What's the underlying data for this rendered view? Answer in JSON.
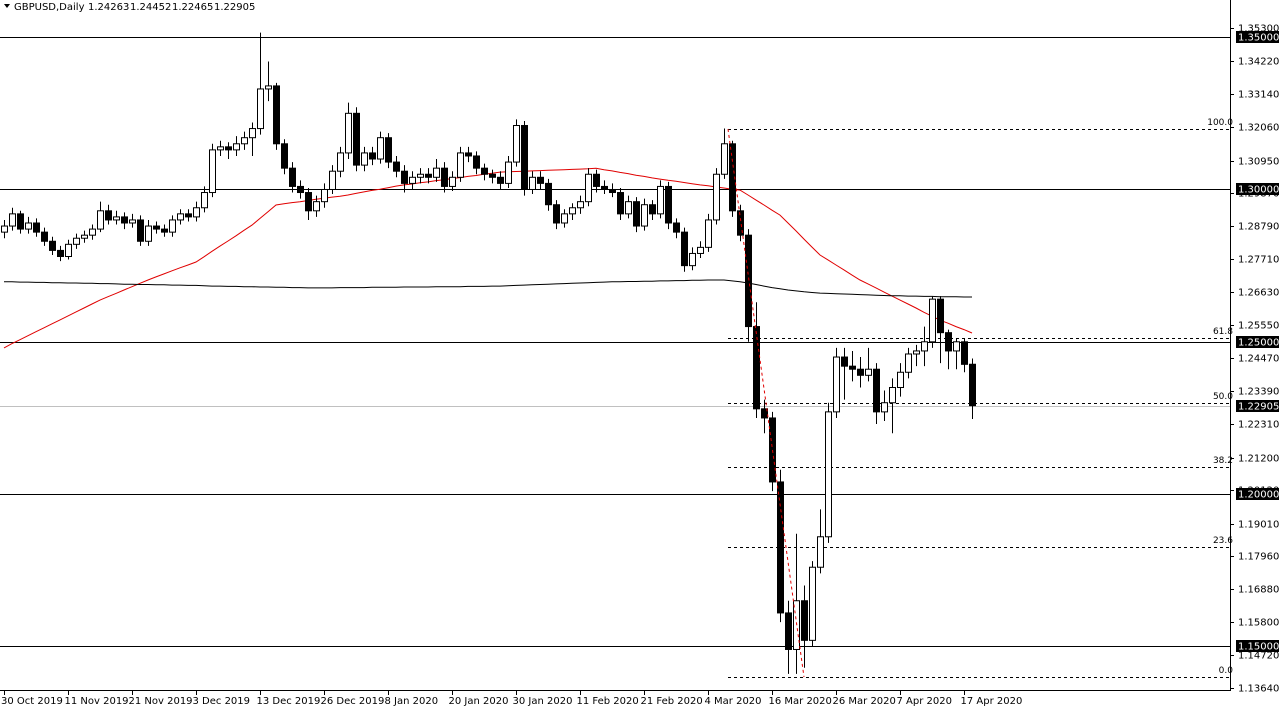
{
  "chart_data": {
    "type": "candlestick",
    "title": "GBPUSD,Daily",
    "categories": [
      "30 Oct 2019",
      null,
      null,
      null,
      null,
      null,
      null,
      null,
      "11 Nov 2019",
      null,
      null,
      null,
      null,
      null,
      null,
      null,
      "21 Nov 2019",
      null,
      null,
      null,
      null,
      null,
      null,
      null,
      "3 Dec 2019",
      null,
      null,
      null,
      null,
      null,
      null,
      null,
      "13 Dec 2019",
      null,
      null,
      null,
      null,
      null,
      null,
      null,
      "26 Dec 2019",
      null,
      null,
      null,
      null,
      null,
      null,
      null,
      "8 Jan 2020",
      null,
      null,
      null,
      null,
      null,
      null,
      null,
      "20 Jan 2020",
      null,
      null,
      null,
      null,
      null,
      null,
      null,
      "30 Jan 2020",
      null,
      null,
      null,
      null,
      null,
      null,
      null,
      "11 Feb 2020",
      null,
      null,
      null,
      null,
      null,
      null,
      null,
      "21 Feb 2020",
      null,
      null,
      null,
      null,
      null,
      null,
      null,
      "4 Mar 2020",
      null,
      null,
      null,
      null,
      null,
      null,
      null,
      "16 Mar 2020",
      null,
      null,
      null,
      null,
      null,
      null,
      null,
      "26 Mar 2020",
      null,
      null,
      null,
      null,
      null,
      null,
      null,
      "7 Apr 2020",
      null,
      null,
      null,
      null,
      null,
      null,
      null,
      "17 Apr 2020",
      null
    ],
    "ohlc": [
      [
        1.286,
        1.29,
        1.284,
        1.288
      ],
      [
        1.288,
        1.294,
        1.2865,
        1.292
      ],
      [
        1.292,
        1.293,
        1.2855,
        1.287
      ],
      [
        1.287,
        1.291,
        1.2855,
        1.289
      ],
      [
        1.289,
        1.2905,
        1.2845,
        1.286
      ],
      [
        1.286,
        1.2875,
        1.2815,
        1.283
      ],
      [
        1.283,
        1.2845,
        1.2785,
        1.28
      ],
      [
        1.28,
        1.2815,
        1.2765,
        1.278
      ],
      [
        1.278,
        1.2835,
        1.277,
        1.282
      ],
      [
        1.282,
        1.2855,
        1.2805,
        1.284
      ],
      [
        1.284,
        1.2865,
        1.2825,
        1.285
      ],
      [
        1.285,
        1.2885,
        1.2835,
        1.287
      ],
      [
        1.287,
        1.296,
        1.286,
        1.293
      ],
      [
        1.293,
        1.295,
        1.2885,
        1.29
      ],
      [
        1.29,
        1.293,
        1.2885,
        1.291
      ],
      [
        1.291,
        1.2925,
        1.287,
        1.289
      ],
      [
        1.289,
        1.292,
        1.2875,
        1.29
      ],
      [
        1.29,
        1.2915,
        1.2815,
        1.283
      ],
      [
        1.283,
        1.29,
        1.2815,
        1.288
      ],
      [
        1.288,
        1.2895,
        1.2855,
        1.287
      ],
      [
        1.287,
        1.2885,
        1.2845,
        1.286
      ],
      [
        1.286,
        1.2915,
        1.2845,
        1.29
      ],
      [
        1.29,
        1.2935,
        1.2885,
        1.292
      ],
      [
        1.292,
        1.2935,
        1.2895,
        1.291
      ],
      [
        1.291,
        1.296,
        1.2895,
        1.294
      ],
      [
        1.294,
        1.301,
        1.2925,
        1.299
      ],
      [
        1.299,
        1.315,
        1.2975,
        1.313
      ],
      [
        1.313,
        1.316,
        1.311,
        1.314
      ],
      [
        1.314,
        1.3155,
        1.31,
        1.313
      ],
      [
        1.313,
        1.3175,
        1.311,
        1.315
      ],
      [
        1.315,
        1.319,
        1.313,
        1.317
      ],
      [
        1.317,
        1.322,
        1.311,
        1.32
      ],
      [
        1.32,
        1.3515,
        1.318,
        1.333
      ],
      [
        1.333,
        1.342,
        1.329,
        1.334
      ],
      [
        1.334,
        1.335,
        1.313,
        1.315
      ],
      [
        1.315,
        1.3165,
        1.305,
        1.307
      ],
      [
        1.307,
        1.309,
        1.299,
        1.301
      ],
      [
        1.301,
        1.303,
        1.297,
        1.299
      ],
      [
        1.299,
        1.3005,
        1.29,
        1.293
      ],
      [
        1.293,
        1.298,
        1.291,
        1.296
      ],
      [
        1.296,
        1.302,
        1.294,
        1.3
      ],
      [
        1.3,
        1.308,
        1.2985,
        1.306
      ],
      [
        1.306,
        1.314,
        1.304,
        1.312
      ],
      [
        1.312,
        1.3285,
        1.31,
        1.325
      ],
      [
        1.325,
        1.327,
        1.306,
        1.308
      ],
      [
        1.308,
        1.314,
        1.306,
        1.312
      ],
      [
        1.312,
        1.314,
        1.308,
        1.31
      ],
      [
        1.31,
        1.319,
        1.3085,
        1.317
      ],
      [
        1.317,
        1.3185,
        1.307,
        1.309
      ],
      [
        1.309,
        1.311,
        1.304,
        1.306
      ],
      [
        1.306,
        1.308,
        1.299,
        1.302
      ],
      [
        1.302,
        1.306,
        1.3,
        1.304
      ],
      [
        1.304,
        1.307,
        1.302,
        1.305
      ],
      [
        1.305,
        1.307,
        1.302,
        1.304
      ],
      [
        1.304,
        1.31,
        1.3025,
        1.307
      ],
      [
        1.307,
        1.309,
        1.299,
        1.301
      ],
      [
        1.301,
        1.306,
        1.2995,
        1.304
      ],
      [
        1.304,
        1.314,
        1.3025,
        1.312
      ],
      [
        1.312,
        1.314,
        1.309,
        1.311
      ],
      [
        1.311,
        1.3125,
        1.305,
        1.307
      ],
      [
        1.307,
        1.3085,
        1.303,
        1.305
      ],
      [
        1.305,
        1.3065,
        1.302,
        1.304
      ],
      [
        1.304,
        1.306,
        1.3,
        1.302
      ],
      [
        1.302,
        1.311,
        1.3005,
        1.309
      ],
      [
        1.309,
        1.323,
        1.3075,
        1.321
      ],
      [
        1.321,
        1.3225,
        1.298,
        1.3
      ],
      [
        1.3,
        1.306,
        1.2985,
        1.304
      ],
      [
        1.304,
        1.306,
        1.3,
        1.302
      ],
      [
        1.302,
        1.3035,
        1.293,
        1.295
      ],
      [
        1.295,
        1.2965,
        1.287,
        1.289
      ],
      [
        1.289,
        1.2935,
        1.2875,
        1.292
      ],
      [
        1.292,
        1.2955,
        1.29,
        1.294
      ],
      [
        1.294,
        1.298,
        1.292,
        1.296
      ],
      [
        1.296,
        1.307,
        1.2945,
        1.305
      ],
      [
        1.305,
        1.3065,
        1.299,
        1.301
      ],
      [
        1.301,
        1.303,
        1.2985,
        1.3
      ],
      [
        1.3,
        1.302,
        1.2975,
        1.299
      ],
      [
        1.299,
        1.3005,
        1.29,
        1.292
      ],
      [
        1.292,
        1.298,
        1.2905,
        1.296
      ],
      [
        1.296,
        1.2975,
        1.286,
        1.288
      ],
      [
        1.288,
        1.297,
        1.2865,
        1.295
      ],
      [
        1.295,
        1.2965,
        1.29,
        1.292
      ],
      [
        1.292,
        1.303,
        1.2905,
        1.301
      ],
      [
        1.301,
        1.3025,
        1.287,
        1.289
      ],
      [
        1.289,
        1.2905,
        1.284,
        1.286
      ],
      [
        1.286,
        1.2875,
        1.273,
        1.275
      ],
      [
        1.275,
        1.281,
        1.2735,
        1.279
      ],
      [
        1.279,
        1.283,
        1.2775,
        1.281
      ],
      [
        1.281,
        1.292,
        1.2795,
        1.29
      ],
      [
        1.29,
        1.307,
        1.2885,
        1.305
      ],
      [
        1.305,
        1.32,
        1.3035,
        1.315
      ],
      [
        1.315,
        1.316,
        1.291,
        1.293
      ],
      [
        1.293,
        1.295,
        1.283,
        1.285
      ],
      [
        1.285,
        1.287,
        1.25,
        1.255
      ],
      [
        1.255,
        1.263,
        1.225,
        1.228
      ],
      [
        1.228,
        1.231,
        1.22,
        1.225
      ],
      [
        1.225,
        1.227,
        1.201,
        1.204
      ],
      [
        1.204,
        1.208,
        1.158,
        1.161
      ],
      [
        1.161,
        1.165,
        1.141,
        1.149
      ],
      [
        1.149,
        1.187,
        1.141,
        1.165
      ],
      [
        1.165,
        1.17,
        1.143,
        1.152
      ],
      [
        1.152,
        1.178,
        1.15,
        1.176
      ],
      [
        1.176,
        1.195,
        1.174,
        1.186
      ],
      [
        1.186,
        1.23,
        1.184,
        1.227
      ],
      [
        1.227,
        1.248,
        1.225,
        1.245
      ],
      [
        1.245,
        1.248,
        1.231,
        1.242
      ],
      [
        1.242,
        1.247,
        1.237,
        1.241
      ],
      [
        1.241,
        1.245,
        1.235,
        1.239
      ],
      [
        1.239,
        1.248,
        1.237,
        1.241
      ],
      [
        1.241,
        1.243,
        1.223,
        1.227
      ],
      [
        1.227,
        1.234,
        1.224,
        1.23
      ],
      [
        1.23,
        1.238,
        1.22,
        1.235
      ],
      [
        1.235,
        1.243,
        1.232,
        1.24
      ],
      [
        1.24,
        1.248,
        1.238,
        1.246
      ],
      [
        1.246,
        1.249,
        1.242,
        1.247
      ],
      [
        1.247,
        1.255,
        1.242,
        1.25
      ],
      [
        1.25,
        1.265,
        1.248,
        1.264
      ],
      [
        1.264,
        1.265,
        1.243,
        1.253
      ],
      [
        1.253,
        1.254,
        1.241,
        1.247
      ],
      [
        1.247,
        1.251,
        1.241,
        1.25
      ],
      [
        1.25,
        1.251,
        1.24,
        1.2426
      ],
      [
        1.24263,
        1.24452,
        1.22465,
        1.22905
      ]
    ],
    "up_color": "#ffffff",
    "down_color": "#000000",
    "moving_averages": [
      {
        "color": "#e00000",
        "values": [
          1.248,
          1.2494,
          1.2507,
          1.252,
          1.2533,
          1.2546,
          1.2559,
          1.2572,
          1.2585,
          1.2598,
          1.2611,
          1.2624,
          1.2637,
          1.2648,
          1.2659,
          1.267,
          1.2681,
          1.2692,
          1.2703,
          1.2713,
          1.2723,
          1.2733,
          1.2743,
          1.2752,
          1.2762,
          1.2779,
          1.2797,
          1.2814,
          1.2831,
          1.2848,
          1.2866,
          1.2883,
          1.2905,
          1.2927,
          1.2949,
          1.2953,
          1.2957,
          1.296,
          1.2964,
          1.2968,
          1.2971,
          1.2975,
          1.2978,
          1.2982,
          1.2987,
          1.2992,
          1.2997,
          1.3001,
          1.3006,
          1.3011,
          1.3015,
          1.3018,
          1.3022,
          1.3025,
          1.3029,
          1.3032,
          1.3036,
          1.3039,
          1.3043,
          1.3046,
          1.305,
          1.3053,
          1.3057,
          1.3058,
          1.3059,
          1.306,
          1.3061,
          1.3062,
          1.3063,
          1.3064,
          1.3065,
          1.3066,
          1.3067,
          1.3068,
          1.307,
          1.3065,
          1.3061,
          1.3056,
          1.3052,
          1.3047,
          1.3043,
          1.3038,
          1.3034,
          1.303,
          1.3027,
          1.3023,
          1.3019,
          1.3015,
          1.3012,
          1.3008,
          1.3005,
          1.3001,
          1.2998,
          1.2982,
          1.2965,
          1.2949,
          1.2932,
          1.2916,
          1.289,
          1.2864,
          1.2837,
          1.2811,
          1.2785,
          1.2769,
          1.2752,
          1.2736,
          1.2719,
          1.2703,
          1.269,
          1.2677,
          1.2663,
          1.265,
          1.2637,
          1.2624,
          1.2611,
          1.2597,
          1.2584,
          1.2571,
          1.2561,
          1.255,
          1.254,
          1.2529
        ]
      },
      {
        "color": "#000000",
        "values": [
          1.2697,
          1.2697,
          1.2696,
          1.2696,
          1.2695,
          1.2695,
          1.2694,
          1.2694,
          1.2693,
          1.2693,
          1.2692,
          1.2692,
          1.2691,
          1.2691,
          1.269,
          1.2689,
          1.2689,
          1.2688,
          1.2688,
          1.2687,
          1.2687,
          1.2686,
          1.2686,
          1.2685,
          1.2685,
          1.2684,
          1.2683,
          1.2683,
          1.2682,
          1.2682,
          1.2681,
          1.2681,
          1.268,
          1.268,
          1.2679,
          1.2679,
          1.2678,
          1.2678,
          1.2677,
          1.2677,
          1.2677,
          1.2677,
          1.2678,
          1.2678,
          1.2678,
          1.2678,
          1.2679,
          1.2679,
          1.2679,
          1.2679,
          1.268,
          1.268,
          1.268,
          1.268,
          1.2681,
          1.2681,
          1.2681,
          1.2681,
          1.2682,
          1.2682,
          1.2682,
          1.2683,
          1.2683,
          1.2684,
          1.2685,
          1.2686,
          1.2687,
          1.2688,
          1.2689,
          1.269,
          1.2691,
          1.2692,
          1.2693,
          1.2694,
          1.2695,
          1.2696,
          1.2697,
          1.2697,
          1.2698,
          1.2698,
          1.2699,
          1.2699,
          1.27,
          1.27,
          1.2701,
          1.2701,
          1.2702,
          1.2702,
          1.2703,
          1.2703,
          1.2703,
          1.27,
          1.2697,
          1.2693,
          1.2688,
          1.2683,
          1.2678,
          1.2674,
          1.267,
          1.2667,
          1.2664,
          1.2662,
          1.266,
          1.2659,
          1.2658,
          1.2657,
          1.2656,
          1.2655,
          1.2654,
          1.2653,
          1.2652,
          1.2651,
          1.2651,
          1.265,
          1.265,
          1.2649,
          1.2649,
          1.2648,
          1.2648,
          1.2648,
          1.2647,
          1.2647
        ]
      }
    ],
    "levels": [
      {
        "value": 1.35,
        "label": "1.35000"
      },
      {
        "value": 1.3,
        "label": "1.30000"
      },
      {
        "value": 1.25,
        "label": "1.25000"
      },
      {
        "value": 1.2,
        "label": "1.20000"
      },
      {
        "value": 1.15,
        "label": "1.15000"
      }
    ],
    "current_price": {
      "value": 1.22905,
      "label": "1.22905"
    },
    "fib": [
      {
        "label": "100.0",
        "price": 1.32
      },
      {
        "label": "61.8",
        "price": 1.2512
      },
      {
        "label": "50.0",
        "price": 1.23
      },
      {
        "label": "38.2",
        "price": 1.2088
      },
      {
        "label": "23.6",
        "price": 1.1825
      },
      {
        "label": "0.0",
        "price": 1.14
      }
    ],
    "ylim": [
      1.1357,
      1.3622
    ],
    "yticks": [
      {
        "value": 1.353,
        "label": "1.35300"
      },
      {
        "value": 1.3422,
        "label": "1.34220"
      },
      {
        "value": 1.3314,
        "label": "1.33140"
      },
      {
        "value": 1.3206,
        "label": "1.32060"
      },
      {
        "value": 1.3095,
        "label": "1.30950"
      },
      {
        "value": 1.2987,
        "label": "1.29870"
      },
      {
        "value": 1.2879,
        "label": "1.28790"
      },
      {
        "value": 1.2771,
        "label": "1.27710"
      },
      {
        "value": 1.2663,
        "label": "1.26630"
      },
      {
        "value": 1.2555,
        "label": "1.25550"
      },
      {
        "value": 1.2447,
        "label": "1.24470"
      },
      {
        "value": 1.2339,
        "label": "1.23390"
      },
      {
        "value": 1.2231,
        "label": "1.22310"
      },
      {
        "value": 1.212,
        "label": "1.21200"
      },
      {
        "value": 1.2012,
        "label": "1.20120"
      },
      {
        "value": 1.1901,
        "label": "1.19010"
      },
      {
        "value": 1.1796,
        "label": "1.17960"
      },
      {
        "value": 1.1688,
        "label": "1.16880"
      },
      {
        "value": 1.158,
        "label": "1.15800"
      },
      {
        "value": 1.1472,
        "label": "1.14720"
      },
      {
        "value": 1.1364,
        "label": "1.13640"
      }
    ]
  }
}
